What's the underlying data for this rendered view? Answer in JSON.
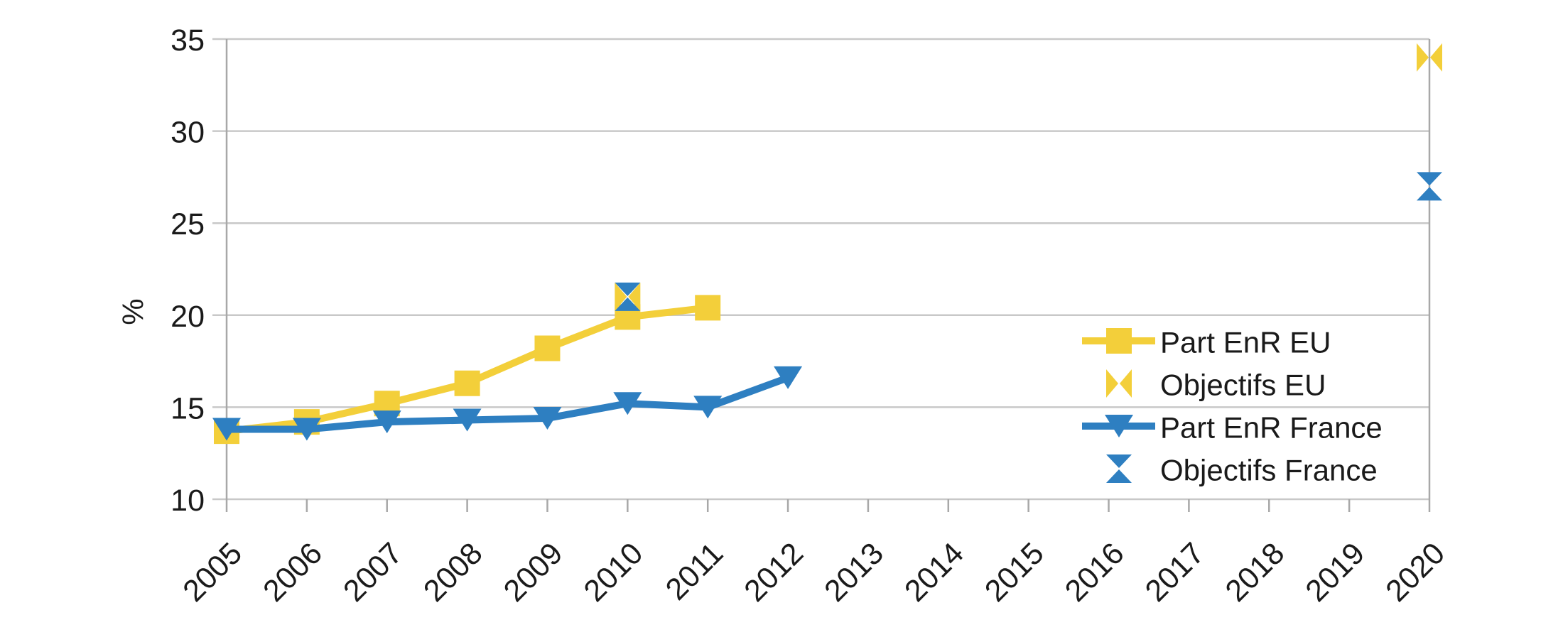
{
  "figure": {
    "background": "#ffffff",
    "text_color": "#1a1a1a",
    "grid_color": "#c8c8c8",
    "axis_color": "#a8a8a8"
  },
  "chart_data": {
    "type": "line",
    "title": "",
    "xlabel": "",
    "ylabel": "%",
    "xlim": [
      2005,
      2020
    ],
    "ylim": [
      10,
      35
    ],
    "x_ticks": [
      2005,
      2006,
      2007,
      2008,
      2009,
      2010,
      2011,
      2012,
      2013,
      2014,
      2015,
      2016,
      2017,
      2018,
      2019,
      2020
    ],
    "y_ticks": [
      10,
      15,
      20,
      25,
      30,
      35
    ],
    "grid": true,
    "legend_position": "inside-right",
    "series": [
      {
        "name": "Part EnR EU",
        "color": "#F3CF3A",
        "marker": "square",
        "line": true,
        "points": [
          [
            2005,
            13.7
          ],
          [
            2006,
            14.2
          ],
          [
            2007,
            15.2
          ],
          [
            2008,
            16.3
          ],
          [
            2009,
            18.2
          ],
          [
            2010,
            19.9
          ],
          [
            2011,
            20.4
          ]
        ]
      },
      {
        "name": "Objectifs EU",
        "color": "#F3CF3A",
        "marker": "bowtie-horizontal",
        "line": false,
        "points": [
          [
            2010,
            21
          ],
          [
            2020,
            34
          ]
        ]
      },
      {
        "name": "Part EnR France",
        "color": "#2E7FC1",
        "marker": "triangle-down",
        "line": true,
        "points": [
          [
            2005,
            13.8
          ],
          [
            2006,
            13.8
          ],
          [
            2007,
            14.2
          ],
          [
            2008,
            14.3
          ],
          [
            2009,
            14.4
          ],
          [
            2010,
            15.2
          ],
          [
            2011,
            15.0
          ],
          [
            2012,
            16.6
          ]
        ]
      },
      {
        "name": "Objectifs France",
        "color": "#2E7FC1",
        "marker": "hourglass-vertical",
        "line": false,
        "points": [
          [
            2010,
            21
          ],
          [
            2020,
            27
          ]
        ]
      }
    ]
  }
}
